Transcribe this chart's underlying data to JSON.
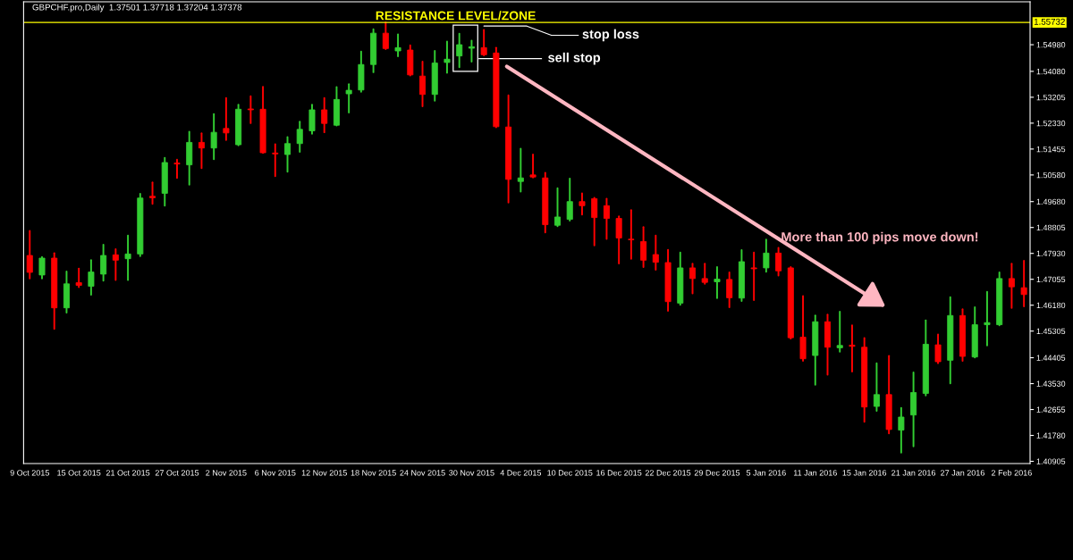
{
  "chart_data": {
    "type": "candlestick",
    "title": "GBPCHF.pro,Daily  1.37501 1.37718 1.37204 1.37378",
    "categories": [
      "9 Oct 2015",
      null,
      null,
      null,
      "15 Oct 2015",
      null,
      null,
      null,
      "21 Oct 2015",
      null,
      null,
      null,
      "27 Oct 2015",
      null,
      null,
      null,
      "2 Nov 2015",
      null,
      null,
      null,
      "6 Nov 2015",
      null,
      null,
      null,
      "12 Nov 2015",
      null,
      null,
      null,
      "18 Nov 2015",
      null,
      null,
      null,
      "24 Nov 2015",
      null,
      null,
      null,
      "30 Nov 2015",
      null,
      null,
      null,
      "4 Dec 2015",
      null,
      null,
      null,
      "10 Dec 2015",
      null,
      null,
      null,
      "16 Dec 2015",
      null,
      null,
      null,
      "22 Dec 2015",
      null,
      null,
      null,
      "29 Dec 2015",
      null,
      null,
      null,
      "5 Jan 2016",
      null,
      null,
      null,
      "11 Jan 2016",
      null,
      null,
      null,
      "15 Jan 2016",
      null,
      null,
      null,
      "21 Jan 2016",
      null,
      null,
      null,
      "27 Jan 2016",
      null,
      null,
      null,
      "2 Feb 2016",
      null
    ],
    "ohlc": [
      [
        1.4786,
        1.4869,
        1.4708,
        1.4729
      ],
      [
        1.472,
        1.4781,
        1.4708,
        1.4777
      ],
      [
        1.4777,
        1.4794,
        1.4538,
        1.4609
      ],
      [
        1.4609,
        1.4732,
        1.4593,
        1.469
      ],
      [
        1.4694,
        1.4742,
        1.4679,
        1.4685
      ],
      [
        1.4682,
        1.477,
        1.4653,
        1.473
      ],
      [
        1.4723,
        1.4822,
        1.4701,
        1.4786
      ],
      [
        1.4788,
        1.4807,
        1.4703,
        1.477
      ],
      [
        1.4775,
        1.4853,
        1.4703,
        1.4791
      ],
      [
        1.4791,
        1.4994,
        1.4784,
        1.498
      ],
      [
        1.4986,
        1.5033,
        1.496,
        1.4981
      ],
      [
        1.4996,
        1.5116,
        1.4954,
        1.51
      ],
      [
        1.5098,
        1.511,
        1.5048,
        1.5095
      ],
      [
        1.5092,
        1.5204,
        1.5025,
        1.5168
      ],
      [
        1.5168,
        1.5199,
        1.5081,
        1.5149
      ],
      [
        1.5149,
        1.5264,
        1.5111,
        1.5202
      ],
      [
        1.5215,
        1.5318,
        1.5176,
        1.52
      ],
      [
        1.516,
        1.5295,
        1.5158,
        1.528
      ],
      [
        1.5281,
        1.5324,
        1.5233,
        1.5278
      ],
      [
        1.528,
        1.5356,
        1.5132,
        1.5133
      ],
      [
        1.5132,
        1.5162,
        1.5054,
        1.5129
      ],
      [
        1.5127,
        1.5186,
        1.5069,
        1.5164
      ],
      [
        1.5164,
        1.5238,
        1.5136,
        1.5212
      ],
      [
        1.5207,
        1.5295,
        1.5197,
        1.5278
      ],
      [
        1.5278,
        1.5318,
        1.5202,
        1.5232
      ],
      [
        1.5226,
        1.5355,
        1.5225,
        1.5313
      ],
      [
        1.5332,
        1.5365,
        1.5269,
        1.5344
      ],
      [
        1.5345,
        1.5475,
        1.5339,
        1.5431
      ],
      [
        1.5431,
        1.555,
        1.5405,
        1.5537
      ],
      [
        1.5537,
        1.5574,
        1.5483,
        1.5485
      ],
      [
        1.5477,
        1.5533,
        1.5459,
        1.5488
      ],
      [
        1.548,
        1.5496,
        1.5394,
        1.5396
      ],
      [
        1.5392,
        1.5441,
        1.529,
        1.533
      ],
      [
        1.533,
        1.5477,
        1.5309,
        1.5436
      ],
      [
        1.5438,
        1.5509,
        1.5403,
        1.5449
      ],
      [
        1.546,
        1.5535,
        1.5422,
        1.5498
      ],
      [
        1.5486,
        1.5512,
        1.5441,
        1.5491
      ],
      [
        1.5488,
        1.5548,
        1.5462,
        1.5464
      ],
      [
        1.547,
        1.5488,
        1.5219,
        1.5221
      ],
      [
        1.522,
        1.5327,
        1.4965,
        1.5043
      ],
      [
        1.5036,
        1.5147,
        1.5002,
        1.5048
      ],
      [
        1.5058,
        1.5127,
        1.5049,
        1.5051
      ],
      [
        1.5048,
        1.5065,
        1.4864,
        1.489
      ],
      [
        1.4888,
        1.5013,
        1.4885,
        1.4916
      ],
      [
        1.4908,
        1.5046,
        1.4904,
        1.4968
      ],
      [
        1.4968,
        1.4996,
        1.4924,
        1.4954
      ],
      [
        1.4978,
        1.4981,
        1.482,
        1.4914
      ],
      [
        1.4954,
        1.4978,
        1.4842,
        1.4911
      ],
      [
        1.4911,
        1.4918,
        1.4759,
        1.4845
      ],
      [
        1.4841,
        1.4939,
        1.4775,
        1.4839
      ],
      [
        1.4833,
        1.4882,
        1.4747,
        1.477
      ],
      [
        1.4789,
        1.4853,
        1.4738,
        1.4763
      ],
      [
        1.4762,
        1.4805,
        1.4599,
        1.463
      ],
      [
        1.4625,
        1.4796,
        1.4619,
        1.4744
      ],
      [
        1.4744,
        1.4758,
        1.4658,
        1.4708
      ],
      [
        1.4708,
        1.4758,
        1.469,
        1.4695
      ],
      [
        1.4697,
        1.4747,
        1.4642,
        1.4706
      ],
      [
        1.4705,
        1.4729,
        1.4611,
        1.4643
      ],
      [
        1.4642,
        1.4804,
        1.4632,
        1.4765
      ],
      [
        1.4744,
        1.4796,
        1.4635,
        1.4741
      ],
      [
        1.4744,
        1.484,
        1.4731,
        1.4794
      ],
      [
        1.4794,
        1.4812,
        1.4718,
        1.4734
      ],
      [
        1.4744,
        1.4747,
        1.4505,
        1.4508
      ],
      [
        1.451,
        1.4649,
        1.443,
        1.4437
      ],
      [
        1.4448,
        1.4583,
        1.4349,
        1.4562
      ],
      [
        1.4562,
        1.4586,
        1.4383,
        1.4476
      ],
      [
        1.4474,
        1.4596,
        1.4461,
        1.4482
      ],
      [
        1.4483,
        1.455,
        1.4394,
        1.4479
      ],
      [
        1.4476,
        1.4507,
        1.4224,
        1.4274
      ],
      [
        1.4276,
        1.4422,
        1.4261,
        1.4316
      ],
      [
        1.4316,
        1.4447,
        1.4185,
        1.4198
      ],
      [
        1.4196,
        1.4271,
        1.412,
        1.424
      ],
      [
        1.4247,
        1.4391,
        1.4141,
        1.4323
      ],
      [
        1.432,
        1.4567,
        1.4313,
        1.4486
      ],
      [
        1.4484,
        1.4519,
        1.4422,
        1.4427
      ],
      [
        1.4432,
        1.4645,
        1.4354,
        1.4583
      ],
      [
        1.4583,
        1.4604,
        1.443,
        1.4445
      ],
      [
        1.4443,
        1.4611,
        1.4441,
        1.4552
      ],
      [
        1.4552,
        1.4663,
        1.4482,
        1.4559
      ],
      [
        1.4552,
        1.4729,
        1.455,
        1.4708
      ],
      [
        1.4708,
        1.4758,
        1.4609,
        1.468
      ],
      [
        1.4677,
        1.4768,
        1.4614,
        1.4654
      ]
    ],
    "colors": [
      "#ff0000",
      "#32cd32",
      "#ff0000",
      "#32cd32",
      "#ff0000",
      "#32cd32",
      "#32cd32",
      "#ff0000",
      "#32cd32",
      "#32cd32",
      "#ff0000",
      "#32cd32",
      "#ff0000",
      "#32cd32",
      "#ff0000",
      "#32cd32",
      "#ff0000",
      "#32cd32",
      "#ff0000",
      "#ff0000",
      "#ff0000",
      "#32cd32",
      "#32cd32",
      "#32cd32",
      "#ff0000",
      "#32cd32",
      "#32cd32",
      "#32cd32",
      "#32cd32",
      "#ff0000",
      "#32cd32",
      "#ff0000",
      "#ff0000",
      "#32cd32",
      "#32cd32",
      "#32cd32",
      "#32cd32",
      "#ff0000",
      "#ff0000",
      "#ff0000",
      "#32cd32",
      "#ff0000",
      "#ff0000",
      "#32cd32",
      "#32cd32",
      "#ff0000",
      "#ff0000",
      "#ff0000",
      "#ff0000",
      "#ff0000",
      "#ff0000",
      "#ff0000",
      "#ff0000",
      "#32cd32",
      "#ff0000",
      "#ff0000",
      "#32cd32",
      "#ff0000",
      "#32cd32",
      "#ff0000",
      "#32cd32",
      "#ff0000",
      "#ff0000",
      "#ff0000",
      "#32cd32",
      "#ff0000",
      "#32cd32",
      "#ff0000",
      "#ff0000",
      "#32cd32",
      "#ff0000",
      "#32cd32",
      "#32cd32",
      "#32cd32",
      "#ff0000",
      "#32cd32",
      "#ff0000",
      "#32cd32",
      "#32cd32",
      "#32cd32",
      "#ff0000",
      "#ff0000"
    ],
    "ylim": [
      1.4083,
      1.5643
    ],
    "yticks": [
      {
        "value": 1.5498,
        "label": "1.54980"
      },
      {
        "value": 1.5408,
        "label": "1.54080"
      },
      1.53205,
      {
        "value": 1.5233,
        "label": "1.52330"
      },
      1.51455,
      {
        "value": 1.5058,
        "label": "1.50580"
      },
      {
        "value": 1.4968,
        "label": "1.49680"
      },
      1.48805,
      {
        "value": 1.4793,
        "label": "1.47930"
      },
      1.47055,
      {
        "value": 1.4618,
        "label": "1.46180"
      },
      1.45305,
      1.44405,
      {
        "value": 1.4353,
        "label": "1.43530"
      },
      1.42655,
      {
        "value": 1.4178,
        "label": "1.41780"
      },
      1.40905
    ],
    "ref_lines": [
      {
        "axis": "y",
        "value": 1.55732,
        "label": "1.55732",
        "color": "#ffff00"
      }
    ],
    "annotations": [
      "RESISTANCE LEVEL/ZONE",
      "stop loss",
      "sell stop",
      "More than 100 pips move down!"
    ],
    "grid": false
  }
}
